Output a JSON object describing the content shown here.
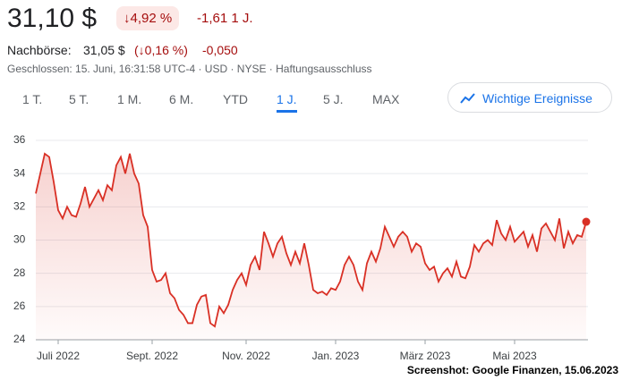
{
  "header": {
    "price": "31,10 $",
    "change_pct": "↓4,92 %",
    "change_abs": "-1,61 1 J.",
    "after_hours_label": "Nachbörse:",
    "after_hours_price": "31,05 $",
    "after_hours_pct": "(↓0,16 %)",
    "after_hours_abs": "-0,050",
    "status": "Geschlossen: 15. Juni, 16:31:58 UTC-4 · USD · NYSE · Haftungsausschluss"
  },
  "tabs": [
    "1 T.",
    "5 T.",
    "1 M.",
    "6 M.",
    "YTD",
    "1 J.",
    "5 J.",
    "MAX"
  ],
  "active_tab": "1 J.",
  "events_button": "Wichtige Ereignisse",
  "caption": "Screenshot: Google Finanzen, 15.06.2023",
  "chart_data": {
    "type": "area",
    "color": "#d93025",
    "grid": true,
    "ylim": [
      24,
      36
    ],
    "yticks": [
      24,
      26,
      28,
      30,
      32,
      34,
      36
    ],
    "categories": [
      null,
      null,
      null,
      null,
      null,
      "Juli 2022",
      null,
      null,
      null,
      null,
      null,
      null,
      null,
      null,
      null,
      null,
      null,
      null,
      null,
      null,
      null,
      null,
      null,
      null,
      null,
      null,
      "Sept. 2022",
      null,
      null,
      null,
      null,
      null,
      null,
      null,
      null,
      null,
      null,
      null,
      null,
      null,
      null,
      null,
      null,
      null,
      null,
      null,
      null,
      "Nov. 2022",
      null,
      null,
      null,
      null,
      null,
      null,
      null,
      null,
      null,
      null,
      null,
      null,
      null,
      null,
      null,
      null,
      null,
      null,
      null,
      "Jan. 2023",
      null,
      null,
      null,
      null,
      null,
      null,
      null,
      null,
      null,
      null,
      null,
      null,
      null,
      null,
      null,
      null,
      null,
      null,
      null,
      "März 2023",
      null,
      null,
      null,
      null,
      null,
      null,
      null,
      null,
      null,
      null,
      null,
      null,
      null,
      null,
      null,
      null,
      null,
      null,
      null,
      "Mai 2023",
      null,
      null,
      null,
      null,
      null,
      null,
      null,
      null,
      null,
      null,
      null,
      null,
      null,
      null,
      null,
      null
    ],
    "values": [
      32.8,
      34.0,
      35.2,
      35.0,
      33.5,
      31.8,
      31.3,
      32.0,
      31.5,
      31.4,
      32.2,
      33.2,
      32.0,
      32.5,
      33.0,
      32.4,
      33.3,
      33.0,
      34.5,
      35.0,
      34.0,
      35.2,
      34.0,
      33.4,
      31.5,
      30.8,
      28.2,
      27.5,
      27.6,
      28.0,
      26.8,
      26.5,
      25.8,
      25.5,
      25.0,
      25.0,
      26.1,
      26.6,
      26.7,
      25.0,
      24.8,
      26.0,
      25.6,
      26.1,
      27.0,
      27.6,
      28.0,
      27.3,
      28.5,
      29.0,
      28.2,
      30.5,
      29.8,
      29.0,
      29.8,
      30.2,
      29.2,
      28.5,
      29.3,
      28.6,
      29.8,
      28.5,
      27.0,
      26.8,
      26.9,
      26.7,
      27.1,
      27.0,
      27.5,
      28.5,
      29.0,
      28.5,
      27.5,
      27.0,
      28.6,
      29.3,
      28.7,
      29.5,
      30.8,
      30.2,
      29.6,
      30.2,
      30.5,
      30.2,
      29.3,
      29.8,
      29.6,
      28.6,
      28.2,
      28.4,
      27.5,
      28.0,
      28.3,
      27.8,
      28.7,
      27.8,
      27.7,
      28.4,
      29.7,
      29.3,
      29.8,
      30.0,
      29.7,
      31.2,
      30.4,
      30.0,
      30.8,
      29.9,
      30.2,
      30.5,
      29.6,
      30.3,
      29.3,
      30.7,
      31.0,
      30.5,
      30.0,
      31.3,
      29.5,
      30.5,
      29.8,
      30.3,
      30.2,
      31.1
    ]
  }
}
